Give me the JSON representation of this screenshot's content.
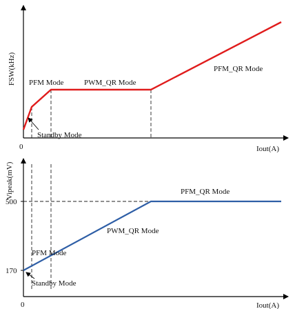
{
  "top_chart": {
    "y_axis_label": "FSW(kHz)",
    "x_axis_label": "Iout(A)",
    "origin_label": "0",
    "curve_color": "#e01c1c",
    "regions": {
      "standby": "Standby Mode",
      "pfm": "PFM Mode",
      "pwm_qr": "PWM_QR Mode",
      "pfm_qr": "PFM_QR Mode"
    }
  },
  "bottom_chart": {
    "y_axis_label": "Vipeak(mV)",
    "x_axis_label": "Iout(A)",
    "origin_label": "0",
    "curve_color": "#2e5ea6",
    "y_ticks": {
      "low": "170",
      "high": "500"
    },
    "regions": {
      "standby": "Standby Mode",
      "pfm": "PFM Mode",
      "pwm_qr": "PWM_QR Mode",
      "pfm_qr": "PFM_QR Mode"
    }
  }
}
